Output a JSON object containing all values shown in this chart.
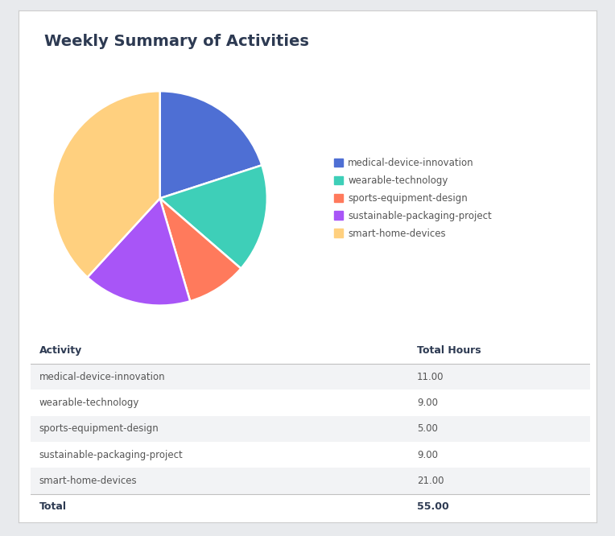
{
  "title": "Weekly Summary of Activities",
  "activities": [
    "medical-device-innovation",
    "wearable-technology",
    "sports-equipment-design",
    "sustainable-packaging-project",
    "smart-home-devices"
  ],
  "hours": [
    11.0,
    9.0,
    5.0,
    9.0,
    21.0
  ],
  "total": 55.0,
  "colors": [
    "#4E6FD4",
    "#3ECFB8",
    "#FF7A5C",
    "#A855F7",
    "#FFD07F"
  ],
  "background_color": "#E8EAED",
  "card_color": "#FFFFFF",
  "title_color": "#2D3A52",
  "table_header_color": "#2D3A52",
  "table_row_alt_color": "#F2F3F5",
  "table_row_color": "#FFFFFF",
  "table_text_color": "#555555",
  "legend_text_color": "#555555",
  "header_fontsize": 14,
  "legend_fontsize": 8.5,
  "table_header_fontsize": 9,
  "table_fontsize": 8.5
}
